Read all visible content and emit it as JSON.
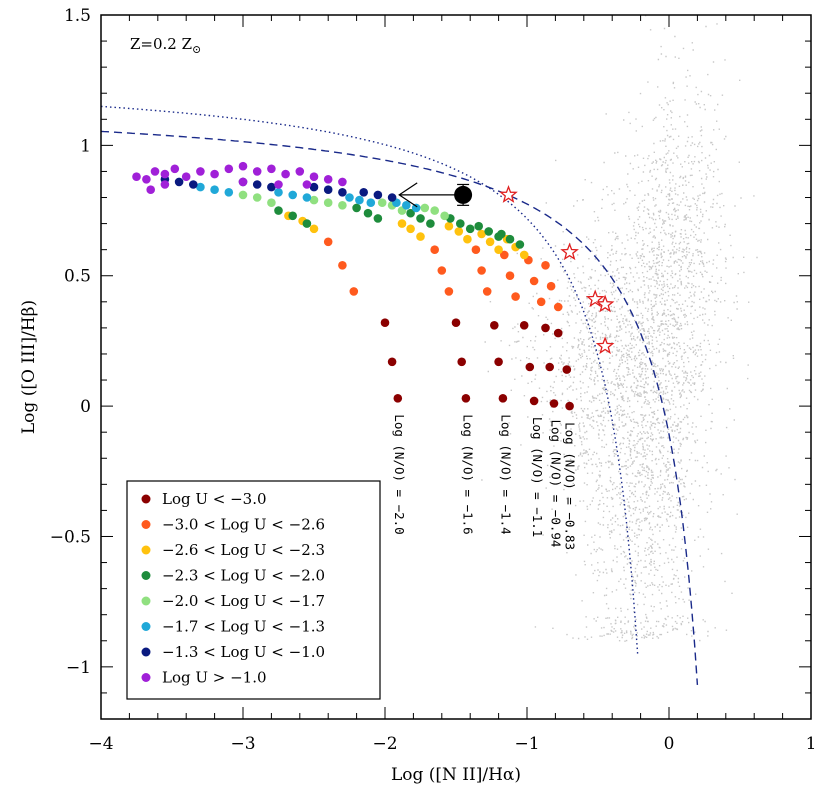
{
  "chart_data": {
    "type": "scatter",
    "title": "",
    "metallicity_label": {
      "main": "Z=0.2 Z",
      "sub": "⊙"
    },
    "xlabel": "Log ([N II]/Hα)",
    "ylabel": "Log ([O III]/Hβ)",
    "xlim": [
      -4,
      1
    ],
    "ylim": [
      -1.2,
      1.5
    ],
    "xticks": [
      -4,
      -3,
      -2,
      -1,
      0,
      1
    ],
    "xtick_labels": [
      "−4",
      "−3",
      "−2",
      "−1",
      "0",
      "1"
    ],
    "yticks": [
      -1,
      -0.5,
      0,
      0.5,
      1,
      1.5
    ],
    "ytick_labels": [
      "−1",
      "−0.5",
      "0",
      "0.5",
      "1",
      "1.5"
    ],
    "legend_position": "bottom-left",
    "colors": {
      "u1": "#8b0000",
      "u2": "#ff5a1e",
      "u3": "#ffc20e",
      "u4": "#1e8c3c",
      "u5": "#90e080",
      "u6": "#20a8d8",
      "u7": "#0a1a80",
      "u8": "#a020d8",
      "background": "#c8c8c8",
      "curve": "#1a2a8a",
      "star": "#e02020"
    },
    "legend": [
      {
        "key": "u1",
        "label": "Log U < −3.0"
      },
      {
        "key": "u2",
        "label": "−3.0 < Log U < −2.6"
      },
      {
        "key": "u3",
        "label": "−2.6 < Log U < −2.3"
      },
      {
        "key": "u4",
        "label": "−2.3 < Log U < −2.0"
      },
      {
        "key": "u5",
        "label": "−2.0 < Log U < −1.7"
      },
      {
        "key": "u6",
        "label": "−1.7 < Log U < −1.3"
      },
      {
        "key": "u7",
        "label": "−1.3 < Log U < −1.0"
      },
      {
        "key": "u8",
        "label": "Log U > −1.0"
      }
    ],
    "no_tracks": [
      {
        "label": "Log (N/O) = −2.0",
        "x_end": -1.9,
        "y_end": 0.03
      },
      {
        "label": "Log (N/O) = −1.6",
        "x_end": -1.42,
        "y_end": 0.03
      },
      {
        "label": "Log (N/O) = −1.4",
        "x_end": -1.15,
        "y_end": 0.03
      },
      {
        "label": "Log (N/O) = −1.1",
        "x_end": -0.93,
        "y_end": 0.02
      },
      {
        "label": "Log (N/O) = −0.94",
        "x_end": -0.8,
        "y_end": 0.01
      },
      {
        "label": "Log (N/O) = −0.83",
        "x_end": -0.7,
        "y_end": 0.0
      }
    ],
    "series": [
      {
        "name": "Log U < −3.0",
        "key": "u1",
        "points": [
          [
            -1.91,
            0.03
          ],
          [
            -1.95,
            0.17
          ],
          [
            -2.0,
            0.32
          ],
          [
            -1.43,
            0.03
          ],
          [
            -1.46,
            0.17
          ],
          [
            -1.5,
            0.32
          ],
          [
            -1.17,
            0.03
          ],
          [
            -1.2,
            0.17
          ],
          [
            -1.23,
            0.31
          ],
          [
            -0.95,
            0.02
          ],
          [
            -0.98,
            0.15
          ],
          [
            -1.02,
            0.31
          ],
          [
            -0.81,
            0.01
          ],
          [
            -0.84,
            0.15
          ],
          [
            -0.87,
            0.3
          ],
          [
            -0.7,
            0.0
          ],
          [
            -0.72,
            0.14
          ],
          [
            -0.78,
            0.28
          ]
        ]
      },
      {
        "name": "−3.0 < Log U < −2.6",
        "key": "u2",
        "points": [
          [
            -2.22,
            0.44
          ],
          [
            -2.3,
            0.54
          ],
          [
            -2.4,
            0.63
          ],
          [
            -1.55,
            0.44
          ],
          [
            -1.6,
            0.52
          ],
          [
            -1.65,
            0.6
          ],
          [
            -1.28,
            0.44
          ],
          [
            -1.32,
            0.52
          ],
          [
            -1.36,
            0.6
          ],
          [
            -1.08,
            0.42
          ],
          [
            -1.12,
            0.5
          ],
          [
            -1.16,
            0.58
          ],
          [
            -0.9,
            0.4
          ],
          [
            -0.95,
            0.48
          ],
          [
            -0.99,
            0.56
          ],
          [
            -0.78,
            0.38
          ],
          [
            -0.83,
            0.46
          ],
          [
            -0.87,
            0.54
          ]
        ]
      },
      {
        "name": "−2.6 < Log U < −2.3",
        "key": "u3",
        "points": [
          [
            -2.5,
            0.68
          ],
          [
            -2.58,
            0.71
          ],
          [
            -2.68,
            0.73
          ],
          [
            -1.75,
            0.65
          ],
          [
            -1.82,
            0.68
          ],
          [
            -1.88,
            0.7
          ],
          [
            -1.42,
            0.64
          ],
          [
            -1.48,
            0.67
          ],
          [
            -1.55,
            0.69
          ],
          [
            -1.2,
            0.6
          ],
          [
            -1.26,
            0.63
          ],
          [
            -1.32,
            0.66
          ],
          [
            -1.02,
            0.58
          ],
          [
            -1.08,
            0.61
          ],
          [
            -1.14,
            0.64
          ]
        ]
      },
      {
        "name": "−2.3 < Log U < −2.0",
        "key": "u4",
        "points": [
          [
            -2.55,
            0.7
          ],
          [
            -2.65,
            0.73
          ],
          [
            -2.75,
            0.75
          ],
          [
            -2.05,
            0.72
          ],
          [
            -2.12,
            0.74
          ],
          [
            -2.2,
            0.76
          ],
          [
            -1.68,
            0.7
          ],
          [
            -1.75,
            0.72
          ],
          [
            -1.82,
            0.74
          ],
          [
            -1.4,
            0.68
          ],
          [
            -1.47,
            0.7
          ],
          [
            -1.54,
            0.72
          ],
          [
            -1.2,
            0.65
          ],
          [
            -1.27,
            0.67
          ],
          [
            -1.34,
            0.69
          ],
          [
            -1.05,
            0.62
          ],
          [
            -1.12,
            0.64
          ],
          [
            -1.18,
            0.66
          ]
        ]
      },
      {
        "name": "−2.0 < Log U < −1.7",
        "key": "u5",
        "points": [
          [
            -2.8,
            0.78
          ],
          [
            -2.9,
            0.8
          ],
          [
            -3.0,
            0.81
          ],
          [
            -2.3,
            0.77
          ],
          [
            -2.4,
            0.78
          ],
          [
            -2.5,
            0.79
          ],
          [
            -1.88,
            0.75
          ],
          [
            -1.95,
            0.77
          ],
          [
            -2.02,
            0.78
          ],
          [
            -1.58,
            0.73
          ],
          [
            -1.65,
            0.75
          ],
          [
            -1.72,
            0.76
          ]
        ]
      },
      {
        "name": "−1.7 < Log U < −1.3",
        "key": "u6",
        "points": [
          [
            -3.1,
            0.82
          ],
          [
            -3.2,
            0.83
          ],
          [
            -3.3,
            0.84
          ],
          [
            -2.55,
            0.8
          ],
          [
            -2.65,
            0.81
          ],
          [
            -2.75,
            0.82
          ],
          [
            -2.1,
            0.78
          ],
          [
            -2.18,
            0.79
          ],
          [
            -2.25,
            0.8
          ],
          [
            -1.78,
            0.76
          ],
          [
            -1.85,
            0.77
          ],
          [
            -1.92,
            0.78
          ]
        ]
      },
      {
        "name": "−1.3 < Log U < −1.0",
        "key": "u7",
        "points": [
          [
            -3.35,
            0.85
          ],
          [
            -3.45,
            0.86
          ],
          [
            -3.55,
            0.87
          ],
          [
            -2.8,
            0.84
          ],
          [
            -2.9,
            0.85
          ],
          [
            -3.0,
            0.86
          ],
          [
            -2.3,
            0.82
          ],
          [
            -2.4,
            0.83
          ],
          [
            -2.5,
            0.84
          ],
          [
            -1.95,
            0.8
          ],
          [
            -2.05,
            0.81
          ],
          [
            -2.15,
            0.82
          ]
        ]
      },
      {
        "name": "Log U > −1.0",
        "key": "u8",
        "points": [
          [
            -3.75,
            0.88
          ],
          [
            -3.68,
            0.87
          ],
          [
            -3.62,
            0.9
          ],
          [
            -3.55,
            0.89
          ],
          [
            -3.48,
            0.91
          ],
          [
            -3.4,
            0.88
          ],
          [
            -3.3,
            0.9
          ],
          [
            -3.2,
            0.89
          ],
          [
            -3.1,
            0.91
          ],
          [
            -3.0,
            0.92
          ],
          [
            -2.9,
            0.9
          ],
          [
            -2.8,
            0.91
          ],
          [
            -2.7,
            0.89
          ],
          [
            -2.6,
            0.9
          ],
          [
            -2.5,
            0.88
          ],
          [
            -2.4,
            0.87
          ],
          [
            -2.3,
            0.86
          ],
          [
            -3.65,
            0.83
          ],
          [
            -3.55,
            0.85
          ],
          [
            -3.0,
            0.86
          ],
          [
            -2.75,
            0.85
          ],
          [
            -2.55,
            0.85
          ]
        ]
      }
    ],
    "observed_point": {
      "x": -1.45,
      "y": 0.81,
      "yerr": 0.04,
      "upper_limit_arrow_to_x": -1.9
    },
    "stars": [
      {
        "x": -1.13,
        "y": 0.81
      },
      {
        "x": -0.7,
        "y": 0.59
      },
      {
        "x": -0.52,
        "y": 0.41
      },
      {
        "x": -0.45,
        "y": 0.39
      },
      {
        "x": -0.45,
        "y": 0.23
      }
    ],
    "curves": [
      {
        "name": "dashed-demarcation",
        "style": "dashed",
        "formula": "0.61/(x-0.47)+1.19",
        "x_max": 0.22
      },
      {
        "name": "dotted-demarcation",
        "style": "dotted",
        "formula": "0.61/(x-0.05)+1.3",
        "x_max": -0.2
      }
    ]
  }
}
